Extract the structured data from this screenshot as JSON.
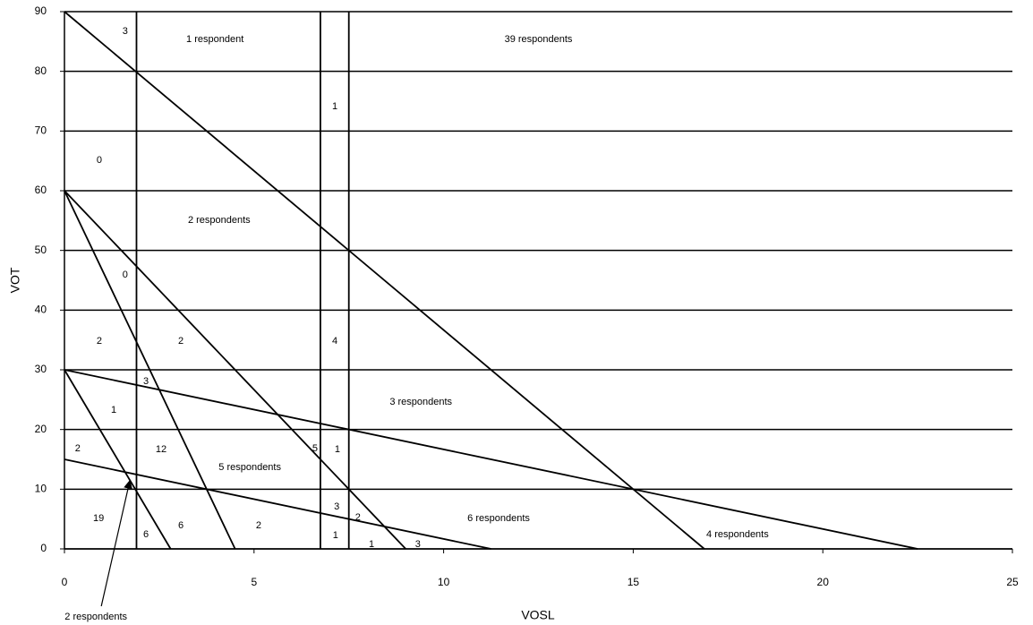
{
  "chart_data": {
    "type": "line",
    "x_label": "VOSL",
    "y_label": "VOT",
    "xlim": [
      0,
      25
    ],
    "xticks": [
      0,
      5,
      10,
      15,
      20,
      25
    ],
    "ylim": [
      0,
      90
    ],
    "yticks": [
      0,
      10,
      20,
      30,
      40,
      50,
      60,
      70,
      80,
      90
    ],
    "grid": true,
    "color": "#000000",
    "lines": [
      {
        "x": [
          0,
          16.875
        ],
        "y": [
          90,
          0
        ]
      },
      {
        "x": [
          0,
          4.5
        ],
        "y": [
          60,
          0
        ]
      },
      {
        "x": [
          0,
          9
        ],
        "y": [
          60,
          0
        ]
      },
      {
        "x": [
          0,
          22.5
        ],
        "y": [
          30,
          0
        ]
      },
      {
        "x": [
          0,
          2.8
        ],
        "y": [
          30,
          0
        ]
      },
      {
        "x": [
          0,
          11.25
        ],
        "y": [
          15,
          0
        ]
      },
      {
        "x": [
          1.9,
          1.9
        ],
        "y": [
          0,
          90
        ]
      },
      {
        "x": [
          6.75,
          6.75
        ],
        "y": [
          0,
          90
        ]
      },
      {
        "x": [
          7.5,
          7.5
        ],
        "y": [
          0,
          90
        ]
      }
    ],
    "annotations": [
      {
        "text": "3",
        "x": 1.6,
        "y": 86.7
      },
      {
        "text": "1 respondent",
        "x": 3.97,
        "y": 85.3
      },
      {
        "text": "39 respondents",
        "x": 12.5,
        "y": 85.3
      },
      {
        "text": "1",
        "x": 7.13,
        "y": 74.1
      },
      {
        "text": "0",
        "x": 0.92,
        "y": 65.1
      },
      {
        "text": "2 respondents",
        "x": 4.08,
        "y": 55
      },
      {
        "text": "0",
        "x": 1.6,
        "y": 45.9
      },
      {
        "text": "2",
        "x": 0.92,
        "y": 34.8
      },
      {
        "text": "2",
        "x": 3.07,
        "y": 34.8
      },
      {
        "text": "4",
        "x": 7.13,
        "y": 34.8
      },
      {
        "text": "3",
        "x": 2.15,
        "y": 28
      },
      {
        "text": "3 respondents",
        "x": 9.4,
        "y": 24.6
      },
      {
        "text": "1",
        "x": 1.3,
        "y": 23.2
      },
      {
        "text": "2",
        "x": 0.35,
        "y": 16.8
      },
      {
        "text": "12",
        "x": 2.55,
        "y": 16.6
      },
      {
        "text": "5 respondents",
        "x": 4.89,
        "y": 13.6
      },
      {
        "text": "5",
        "x": 6.61,
        "y": 16.8
      },
      {
        "text": "1",
        "x": 7.2,
        "y": 16.6
      },
      {
        "text": "3",
        "x": 7.18,
        "y": 7
      },
      {
        "text": "2",
        "x": 7.74,
        "y": 5.2
      },
      {
        "text": "6 respondents",
        "x": 11.45,
        "y": 5.1
      },
      {
        "text": "19",
        "x": 0.9,
        "y": 5.1
      },
      {
        "text": "6",
        "x": 2.15,
        "y": 2.4
      },
      {
        "text": "6",
        "x": 3.07,
        "y": 3.9
      },
      {
        "text": "2",
        "x": 5.12,
        "y": 3.9
      },
      {
        "text": "1",
        "x": 7.15,
        "y": 2.2
      },
      {
        "text": "1",
        "x": 8.1,
        "y": 0.75
      },
      {
        "text": "3",
        "x": 9.32,
        "y": 0.75
      },
      {
        "text": "4 respondents",
        "x": 17.75,
        "y": 2.4
      },
      {
        "text": "2 respondents",
        "x": 0.83,
        "y": -11.4,
        "arrow_x": 1.72,
        "arrow_y": 11.3
      }
    ]
  }
}
